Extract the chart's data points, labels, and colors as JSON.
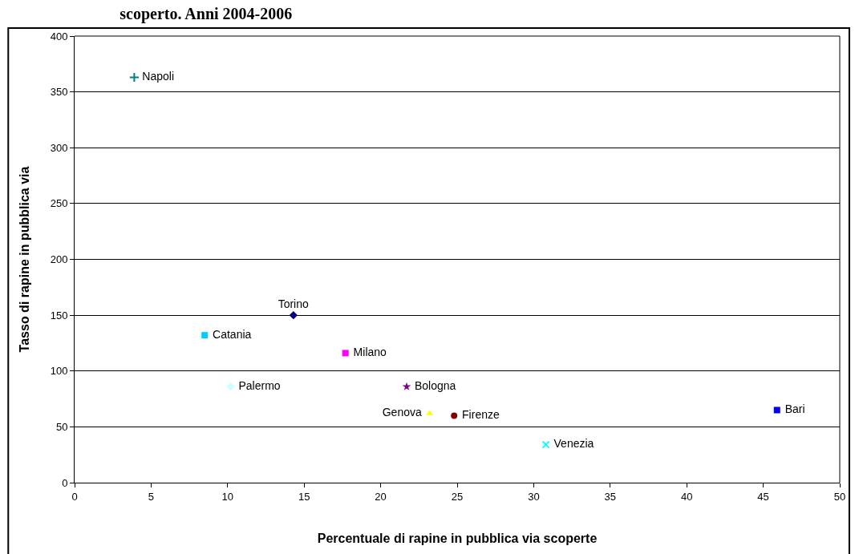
{
  "chart_data": {
    "type": "scatter",
    "title": "scoperto. Anni 2004-2006",
    "xlabel": "Percentuale di rapine in pubblica via scoperte",
    "ylabel": "Tasso di rapine in pubblica via",
    "xlim": [
      0,
      50
    ],
    "xticks": [
      0,
      5,
      10,
      15,
      20,
      25,
      30,
      35,
      40,
      45,
      50
    ],
    "ylim": [
      0,
      400
    ],
    "yticks": [
      0,
      50,
      100,
      150,
      200,
      250,
      300,
      350,
      400
    ],
    "grid": "y",
    "legend": false,
    "series": [
      {
        "name": "Torino",
        "color": "#000080",
        "marker": "diamond",
        "x": [
          14.3
        ],
        "values": [
          150
        ]
      },
      {
        "name": "Milano",
        "color": "#ff00ff",
        "marker": "square",
        "x": [
          17.7
        ],
        "values": [
          116
        ]
      },
      {
        "name": "Genova",
        "color": "#ffff00",
        "marker": "triangle",
        "x": [
          23.2
        ],
        "values": [
          62
        ]
      },
      {
        "name": "Venezia",
        "color": "#00ffff",
        "marker": "x",
        "x": [
          30.8
        ],
        "values": [
          34
        ]
      },
      {
        "name": "Bologna",
        "color": "#800080",
        "marker": "star",
        "x": [
          21.7
        ],
        "values": [
          86
        ]
      },
      {
        "name": "Firenze",
        "color": "#800000",
        "marker": "circle",
        "x": [
          24.8
        ],
        "values": [
          60
        ]
      },
      {
        "name": "Napoli",
        "color": "#008080",
        "marker": "cross",
        "x": [
          3.9
        ],
        "values": [
          363
        ]
      },
      {
        "name": "Bari",
        "color": "#0000ff",
        "marker": "square",
        "x": [
          45.9
        ],
        "values": [
          65
        ]
      },
      {
        "name": "Palermo",
        "color": "#ccffff",
        "marker": "diamond",
        "x": [
          10.2
        ],
        "values": [
          86
        ]
      },
      {
        "name": "Catania",
        "color": "#00ccff",
        "marker": "square",
        "x": [
          8.5
        ],
        "values": [
          132
        ]
      }
    ]
  }
}
